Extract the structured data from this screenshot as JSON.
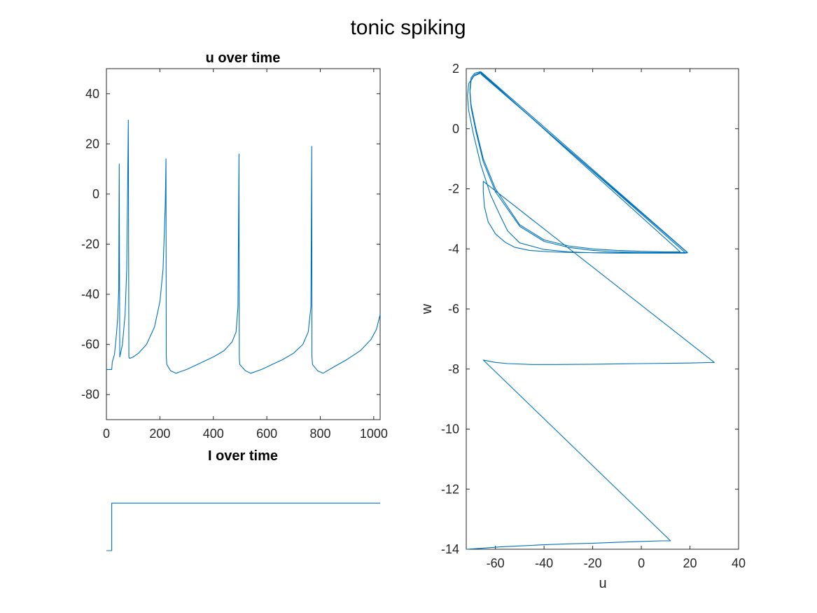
{
  "figure": {
    "suptitle": "tonic spiking"
  },
  "chart_data": [
    {
      "type": "line",
      "title": "u over time",
      "xlabel": "",
      "ylabel": "",
      "xlim": [
        0,
        1024
      ],
      "ylim": [
        -90,
        50
      ],
      "xticks": [
        0,
        200,
        400,
        600,
        800,
        1000
      ],
      "yticks": [
        40,
        20,
        0,
        -20,
        -40,
        -60,
        -80
      ],
      "grid": false,
      "color": "#0072BD",
      "series": [
        {
          "x": [
            0,
            20,
            22,
            30,
            36,
            42,
            46,
            48,
            50,
            52,
            60,
            70,
            76,
            80,
            82,
            84,
            86,
            90,
            100,
            120,
            150,
            180,
            200,
            212,
            220,
            223,
            224,
            226,
            240,
            260,
            300,
            350,
            400,
            440,
            470,
            485,
            492,
            496,
            497,
            499,
            520,
            540,
            580,
            620,
            660,
            700,
            735,
            755,
            765,
            768,
            769,
            771,
            790,
            810,
            850,
            900,
            950,
            990,
            1010,
            1024
          ],
          "y": [
            -70,
            -70,
            -67,
            -64,
            -58,
            -50,
            -38,
            12,
            -65,
            -64,
            -60,
            -48,
            -30,
            8,
            29.5,
            -65,
            -65.5,
            -65.5,
            -65,
            -63.5,
            -60,
            -53,
            -43,
            -30,
            -5,
            14,
            -65,
            -68,
            -70.5,
            -71.5,
            -70,
            -67.5,
            -65,
            -62.5,
            -59,
            -55,
            -45,
            16,
            -65,
            -68,
            -70.5,
            -71.5,
            -70,
            -68,
            -66,
            -63.5,
            -60,
            -55,
            -45,
            19,
            -65,
            -68,
            -70.5,
            -71.5,
            -69,
            -66,
            -62.5,
            -58,
            -54,
            -48
          ]
        }
      ]
    },
    {
      "type": "line",
      "title": "I over time",
      "xlabel": "",
      "ylabel": "",
      "xlim": [
        0,
        1024
      ],
      "ylim": [
        0,
        1.8
      ],
      "grid": false,
      "axis_visible": false,
      "color": "#0072BD",
      "series": [
        {
          "x": [
            0,
            20,
            20,
            1024
          ],
          "y": [
            0,
            0,
            1,
            1
          ]
        }
      ]
    },
    {
      "type": "line",
      "title": "",
      "xlabel": "u",
      "ylabel": "w",
      "xlim": [
        -72,
        40
      ],
      "ylim": [
        -14,
        2
      ],
      "xticks": [
        -60,
        -40,
        -20,
        0,
        20,
        40
      ],
      "yticks": [
        2,
        0,
        -2,
        -4,
        -6,
        -8,
        -10,
        -12,
        -14
      ],
      "grid": false,
      "color": "#0072BD",
      "series": [
        {
          "x": [
            -72,
            -66,
            -58,
            -48,
            -40,
            -30,
            -20,
            -10,
            0,
            8,
            12,
            -65,
            -60,
            -55,
            -45,
            -35,
            -20,
            0,
            20,
            30,
            -65,
            -65,
            -64.5,
            -63,
            -60,
            -56,
            -52,
            -46,
            -38,
            -28,
            -10,
            10,
            19,
            -66,
            -68.5,
            -70,
            -70.5,
            -70,
            -68,
            -65,
            -60,
            -50,
            -40,
            -30,
            -20,
            -10,
            0,
            10,
            15,
            16,
            -66,
            -68.5,
            -70,
            -70.5,
            -70,
            -68,
            -65,
            -60,
            -50,
            -40,
            -30,
            -20,
            -10,
            0,
            10,
            17,
            18,
            -66,
            -69,
            -71,
            -71.5,
            -71,
            -69,
            -66,
            -62,
            -58,
            -55,
            -50,
            -40,
            -30,
            -20,
            -10,
            0,
            10,
            18,
            19,
            -66
          ],
          "y": [
            -14,
            -13.97,
            -13.92,
            -13.88,
            -13.85,
            -13.82,
            -13.8,
            -13.77,
            -13.74,
            -13.72,
            -13.72,
            -7.7,
            -7.78,
            -7.82,
            -7.85,
            -7.85,
            -7.84,
            -7.82,
            -7.8,
            -7.78,
            -1.75,
            -2.1,
            -2.6,
            -3.1,
            -3.5,
            -3.78,
            -3.95,
            -4.05,
            -4.1,
            -4.12,
            -4.13,
            -4.13,
            -4.12,
            1.9,
            1.85,
            1.7,
            1.3,
            0.8,
            0,
            -1,
            -2,
            -3.2,
            -3.7,
            -3.9,
            -4.0,
            -4.05,
            -4.08,
            -4.1,
            -4.1,
            -4.1,
            1.88,
            1.8,
            1.6,
            1.2,
            0.7,
            -0.1,
            -1.1,
            -2.1,
            -3.25,
            -3.75,
            -3.95,
            -4.05,
            -4.1,
            -4.12,
            -4.12,
            -4.12,
            -4.12,
            1.85,
            1.75,
            1.5,
            1.1,
            0.6,
            -0.2,
            -1.2,
            -2.2,
            -2.9,
            -3.4,
            -3.8,
            -4.02,
            -4.1,
            -4.13,
            -4.14,
            -4.14,
            -4.14,
            -4.14,
            -4.13,
            1.82
          ]
        }
      ]
    }
  ]
}
